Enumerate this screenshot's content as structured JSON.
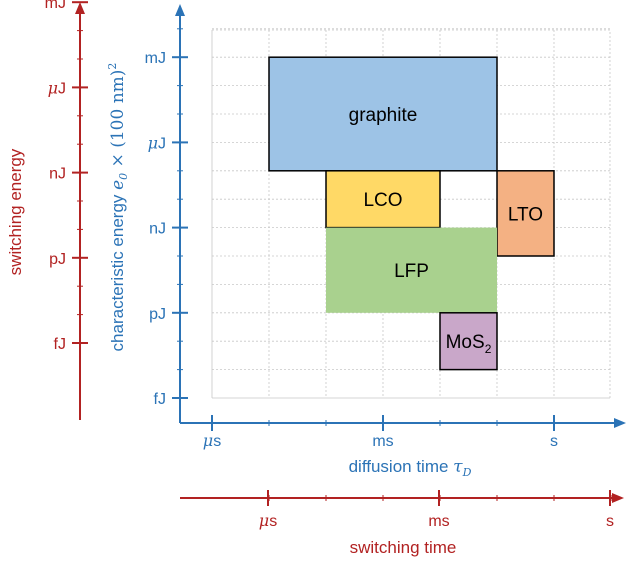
{
  "chart_data": {
    "type": "box-region",
    "grid": true,
    "axes": {
      "x_inner": {
        "label_main": "diffusion time ",
        "label_symbol": "τ",
        "label_sub": "D",
        "ticks": [
          {
            "value": -6,
            "prefix": "μ",
            "unit": "s"
          },
          {
            "value": -3,
            "prefix": "",
            "unit": "ms"
          },
          {
            "value": 0,
            "prefix": "",
            "unit": "s"
          }
        ],
        "range": [
          -6.5,
          0.8
        ],
        "color": "#2b73b6"
      },
      "x_outer": {
        "label": "switching time",
        "ticks": [
          {
            "value": -6,
            "prefix": "μ",
            "unit": "s"
          },
          {
            "value": -3,
            "prefix": "",
            "unit": "ms"
          },
          {
            "value": 0,
            "prefix": "",
            "unit": "s"
          }
        ],
        "color": "#b22222"
      },
      "y_inner": {
        "label_main": "characteristic energy ",
        "label_sym": "e",
        "label_sub": "0",
        "label_rest": " × (100 nm)",
        "label_sup": "2",
        "ticks": [
          {
            "value": -15,
            "prefix": "",
            "unit": "fJ"
          },
          {
            "value": -12,
            "prefix": "",
            "unit": "pJ"
          },
          {
            "value": -9,
            "prefix": "",
            "unit": "nJ"
          },
          {
            "value": -6,
            "prefix": "μ",
            "unit": "J"
          },
          {
            "value": -3,
            "prefix": "",
            "unit": "mJ"
          }
        ],
        "range": [
          -15.6,
          -1.5
        ],
        "color": "#2b73b6"
      },
      "y_outer": {
        "label": "switching energy",
        "ticks": [
          {
            "value": -15,
            "prefix": "",
            "unit": "fJ"
          },
          {
            "value": -12,
            "prefix": "",
            "unit": "pJ"
          },
          {
            "value": -9,
            "prefix": "",
            "unit": "nJ"
          },
          {
            "value": -6,
            "prefix": "μ",
            "unit": "J"
          },
          {
            "value": -3,
            "prefix": "",
            "unit": "mJ"
          }
        ],
        "color": "#b22222"
      }
    },
    "boxes": [
      {
        "label": "graphite",
        "sub": "",
        "x": [
          -5,
          -1
        ],
        "y": [
          -7,
          -3
        ],
        "fill": "#9dc3e6",
        "stroke": "#000000"
      },
      {
        "label": "LCO",
        "sub": "",
        "x": [
          -4,
          -2
        ],
        "y": [
          -9,
          -7
        ],
        "fill": "#ffd966",
        "stroke": "#000000"
      },
      {
        "label": "LTO",
        "sub": "",
        "x": [
          -1,
          0
        ],
        "y": [
          -10,
          -7
        ],
        "fill": "#f4b183",
        "stroke": "#000000"
      },
      {
        "label": "LFP",
        "sub": "",
        "x": [
          -4,
          -1
        ],
        "y": [
          -12,
          -9
        ],
        "fill": "#a9d18e",
        "stroke": "none"
      },
      {
        "label": "MoS",
        "sub": "2",
        "x": [
          -2,
          -1
        ],
        "y": [
          -14,
          -12
        ],
        "fill": "#c9a7c9",
        "stroke": "#000000"
      }
    ]
  }
}
